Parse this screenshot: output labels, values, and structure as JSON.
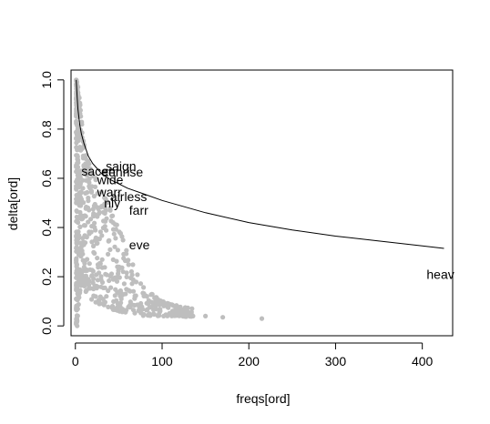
{
  "chart_data": {
    "type": "scatter",
    "title": "",
    "xlabel": "freqs[ord]",
    "ylabel": "delta[ord]",
    "xlim": [
      -5,
      435
    ],
    "ylim": [
      -0.04,
      1.04
    ],
    "x_ticks": [
      0,
      100,
      200,
      300,
      400
    ],
    "x_tick_labels": [
      "0",
      "100",
      "200",
      "300",
      "400"
    ],
    "y_ticks": [
      0.0,
      0.2,
      0.4,
      0.6,
      0.8,
      1.0
    ],
    "y_tick_labels": [
      "0.0",
      "0.2",
      "0.4",
      "0.6",
      "0.8",
      "1.0"
    ],
    "grid": false,
    "colors": {
      "points": "#bebebe",
      "curve": "#000000",
      "axes": "#000000"
    },
    "point_series": {
      "name": "",
      "seed": 42,
      "approx_count": 700,
      "x": [
        1,
        2,
        3,
        4,
        5,
        6,
        8,
        10,
        12,
        15,
        20,
        25,
        30,
        40,
        50,
        60,
        70,
        80,
        100,
        120,
        150,
        170,
        215
      ],
      "lower": [
        0.0,
        0.02,
        0.05,
        0.08,
        0.12,
        0.15,
        0.18,
        0.16,
        0.14,
        0.12,
        0.1,
        0.09,
        0.08,
        0.07,
        0.06,
        0.05,
        0.05,
        0.04,
        0.04,
        0.04,
        0.03,
        0.03,
        0.03
      ],
      "upper": [
        1.0,
        0.99,
        0.97,
        0.95,
        0.92,
        0.88,
        0.8,
        0.74,
        0.7,
        0.67,
        0.64,
        0.6,
        0.55,
        0.48,
        0.4,
        0.3,
        0.22,
        0.15,
        0.1,
        0.08,
        0.06,
        0.05,
        0.04
      ],
      "extra": [
        {
          "x": 2,
          "y": 0.0
        },
        {
          "x": 2,
          "y": 0.02
        },
        {
          "x": 40,
          "y": 0.31
        },
        {
          "x": 150,
          "y": 0.04
        },
        {
          "x": 170,
          "y": 0.035
        },
        {
          "x": 215,
          "y": 0.03
        }
      ]
    },
    "curve": {
      "x": [
        1,
        2,
        3,
        5,
        7,
        10,
        15,
        20,
        30,
        40,
        60,
        80,
        100,
        150,
        200,
        250,
        300,
        350,
        400,
        425
      ],
      "y": [
        1.0,
        0.93,
        0.88,
        0.82,
        0.78,
        0.74,
        0.69,
        0.66,
        0.62,
        0.595,
        0.56,
        0.535,
        0.51,
        0.46,
        0.42,
        0.39,
        0.365,
        0.345,
        0.325,
        0.315
      ]
    },
    "annotations": [
      {
        "label": "sacen",
        "x": 7,
        "y": 0.63
      },
      {
        "label": "saign",
        "x": 35,
        "y": 0.65
      },
      {
        "label": "eenrise",
        "x": 30,
        "y": 0.625
      },
      {
        "label": "wide",
        "x": 25,
        "y": 0.595
      },
      {
        "label": "warr",
        "x": 25,
        "y": 0.545
      },
      {
        "label": "airless",
        "x": 40,
        "y": 0.525
      },
      {
        "label": "nly",
        "x": 33,
        "y": 0.5
      },
      {
        "label": "farr",
        "x": 62,
        "y": 0.47
      },
      {
        "label": "eve",
        "x": 62,
        "y": 0.33
      },
      {
        "label": "heav",
        "x": 405,
        "y": 0.21
      }
    ]
  }
}
